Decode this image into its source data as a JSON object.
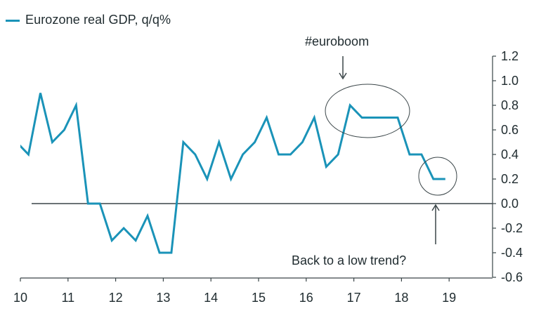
{
  "chart_data": {
    "type": "line",
    "title": "",
    "xlabel": "",
    "ylabel": "",
    "xlim": [
      2010,
      2020
    ],
    "ylim": [
      -0.6,
      1.2
    ],
    "x_ticks": [
      10,
      11,
      12,
      13,
      14,
      15,
      16,
      17,
      18,
      19
    ],
    "x_tick_labels": [
      "10",
      "11",
      "12",
      "13",
      "14",
      "15",
      "16",
      "17",
      "18",
      "19"
    ],
    "y_ticks": [
      1.2,
      1.0,
      0.8,
      0.6,
      0.4,
      0.2,
      0.0,
      -0.2,
      -0.4,
      -0.6
    ],
    "y_tick_labels": [
      "1.2",
      "1.0",
      "0.8",
      "0.6",
      "0.4",
      "0.2",
      "0.0",
      "-0.2",
      "-0.4",
      "-0.6"
    ],
    "y_axis_side": "right",
    "grid": false,
    "zero_line": true,
    "legend": {
      "placement": "top-left",
      "entries": [
        "Eurozone real GDP, q/q%"
      ]
    },
    "series": [
      {
        "name": "Eurozone real GDP, q/q%",
        "color": "#1a93b8",
        "x": [
          "2009Q4",
          "2010Q1",
          "2010Q2",
          "2010Q3",
          "2010Q4",
          "2011Q1",
          "2011Q2",
          "2011Q3",
          "2011Q4",
          "2012Q1",
          "2012Q2",
          "2012Q3",
          "2012Q4",
          "2013Q1",
          "2013Q2",
          "2013Q3",
          "2013Q4",
          "2014Q1",
          "2014Q2",
          "2014Q3",
          "2014Q4",
          "2015Q1",
          "2015Q2",
          "2015Q3",
          "2015Q4",
          "2016Q1",
          "2016Q2",
          "2016Q3",
          "2016Q4",
          "2017Q1",
          "2017Q2",
          "2017Q3",
          "2017Q4",
          "2018Q1",
          "2018Q2",
          "2018Q3",
          "2018Q4"
        ],
        "values": [
          0.5,
          0.4,
          0.9,
          0.5,
          0.6,
          0.8,
          0.0,
          0.0,
          -0.3,
          -0.2,
          -0.3,
          -0.1,
          -0.4,
          -0.4,
          0.5,
          0.4,
          0.2,
          0.5,
          0.2,
          0.4,
          0.5,
          0.7,
          0.4,
          0.4,
          0.5,
          0.7,
          0.3,
          0.4,
          0.8,
          0.7,
          0.7,
          0.7,
          0.7,
          0.4,
          0.4,
          0.2,
          0.2
        ]
      }
    ],
    "annotations": [
      {
        "text": "#euroboom",
        "target": "2017Q1-2018Q1 plateau",
        "shape": "ellipse",
        "arrow": "down"
      },
      {
        "text": "Back to a low trend?",
        "target": "2018Q3-2018Q4",
        "shape": "circle",
        "arrow": "up"
      }
    ]
  },
  "legend": {
    "label": "Eurozone real GDP, q/q%",
    "color": "#1a93b8"
  },
  "colors": {
    "line": "#1a93b8",
    "axis": "#3a4548",
    "text": "#1f2b2f",
    "annotation": "#3a4548"
  }
}
